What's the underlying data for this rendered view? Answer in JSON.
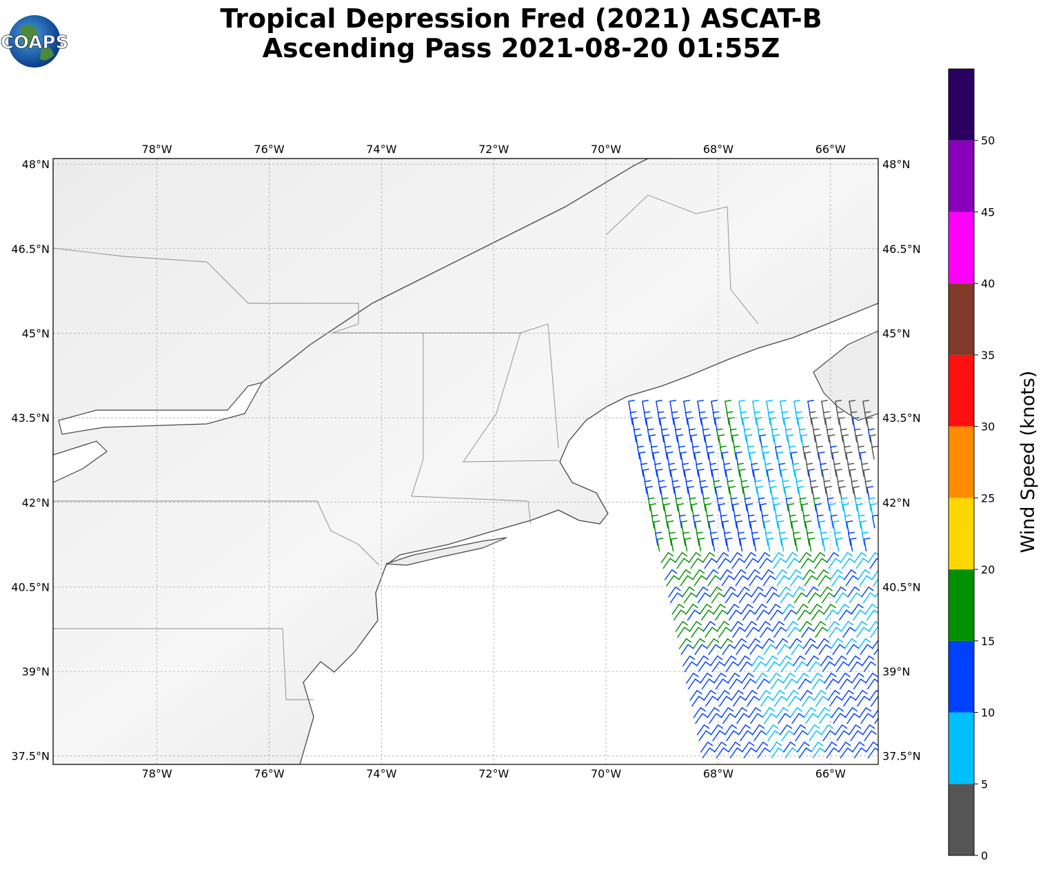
{
  "header": {
    "title_line1": "Tropical Depression Fred (2021) ASCAT-B",
    "title_line2": "Ascending Pass 2021-08-20 01:55Z",
    "logo": "COAPS"
  },
  "map": {
    "xlim": [
      -79.85,
      -65.15
    ],
    "ylim": [
      37.35,
      48.1
    ],
    "xticks": [
      {
        "value": -78,
        "label": "78°W"
      },
      {
        "value": -76,
        "label": "76°W"
      },
      {
        "value": -74,
        "label": "74°W"
      },
      {
        "value": -72,
        "label": "72°W"
      },
      {
        "value": -70,
        "label": "70°W"
      },
      {
        "value": -68,
        "label": "68°W"
      },
      {
        "value": -66,
        "label": "66°W"
      }
    ],
    "yticks": [
      {
        "value": 48,
        "label": "48°N"
      },
      {
        "value": 46.5,
        "label": "46.5°N"
      },
      {
        "value": 45,
        "label": "45°N"
      },
      {
        "value": 43.5,
        "label": "43.5°N"
      },
      {
        "value": 42,
        "label": "42°N"
      },
      {
        "value": 40.5,
        "label": "40.5°N"
      },
      {
        "value": 39,
        "label": "39°N"
      },
      {
        "value": 37.5,
        "label": "37.5°N"
      }
    ],
    "grid": true
  },
  "colorbar": {
    "label": "Wind Speed (knots)",
    "lim": [
      0,
      55
    ],
    "ticks": [
      0,
      5,
      10,
      15,
      20,
      25,
      30,
      35,
      40,
      45,
      50
    ],
    "colors": [
      "#555555",
      "#00bfff",
      "#0040ff",
      "#009000",
      "#ffd700",
      "#ff8c00",
      "#ff1010",
      "#803a28",
      "#ff00ff",
      "#8800bb",
      "#2a0060"
    ]
  }
}
